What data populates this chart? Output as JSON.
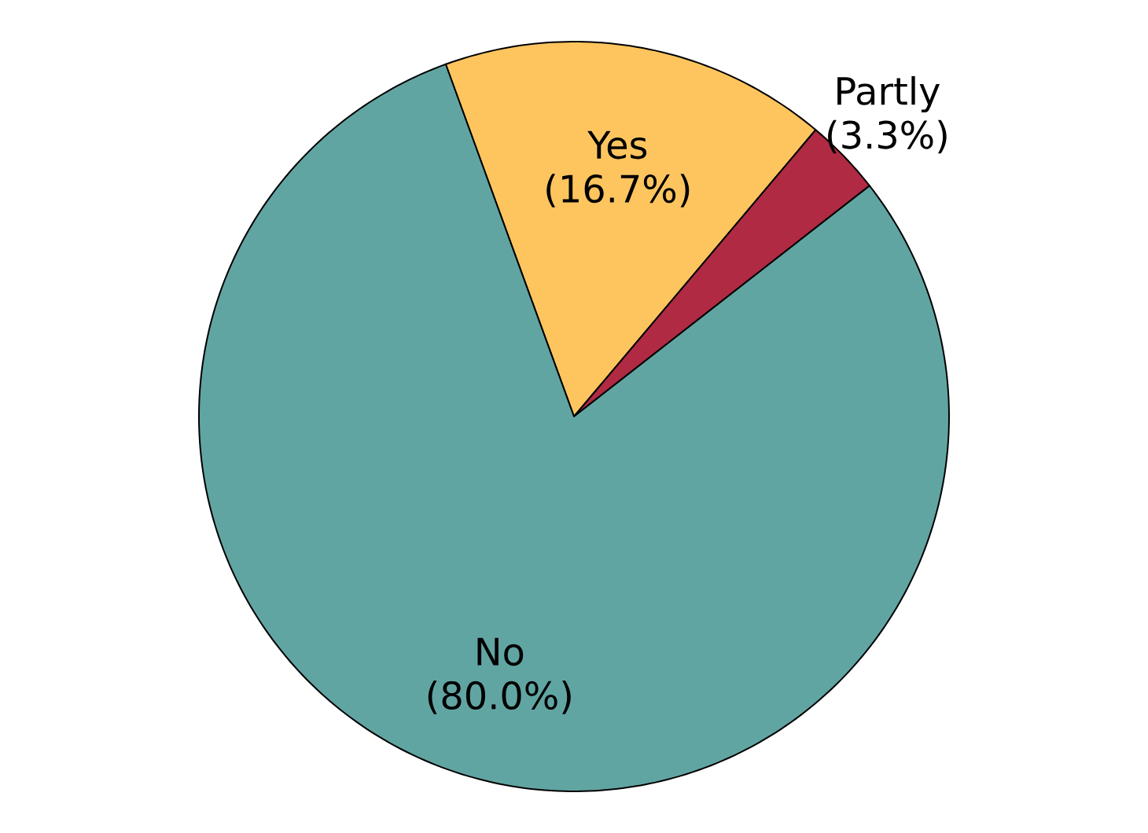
{
  "chart_data": {
    "type": "pie",
    "categories": [
      "Yes",
      "Partly",
      "No"
    ],
    "values": [
      16.7,
      3.3,
      80.0
    ],
    "colors": [
      "#fec55f",
      "#b02a43",
      "#61a5a3"
    ],
    "value_labels": [
      "(16.7%)",
      "(3.3%)",
      "(80.0%)"
    ]
  }
}
